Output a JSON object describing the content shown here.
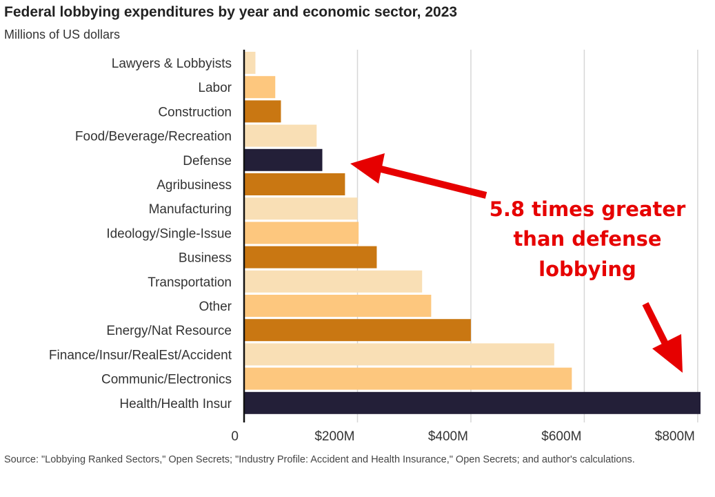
{
  "chart_data": {
    "type": "bar",
    "orientation": "horizontal",
    "title": "Federal lobbying expenditures by year and economic sector, 2023",
    "subtitle": "Millions of US dollars",
    "categories": [
      "Lawyers & Lobbyists",
      "Labor",
      "Construction",
      "Food/Beverage/Recreation",
      "Defense",
      "Agribusiness",
      "Manufacturing",
      "Ideology/Single-Issue",
      "Business",
      "Transportation",
      "Other",
      "Energy/Nat Resource",
      "Finance/Insur/RealEst/Accident",
      "Communic/Electronics",
      "Health/Health Insur"
    ],
    "values": [
      20,
      55,
      65,
      128,
      138,
      178,
      200,
      202,
      234,
      314,
      330,
      400,
      547,
      578,
      805
    ],
    "bar_colors": [
      "#f9dfb5",
      "#fdc77e",
      "#c97712",
      "#f9dfb5",
      "#231f38",
      "#c97712",
      "#f9dfb5",
      "#fdc77e",
      "#c97712",
      "#f9dfb5",
      "#fdc77e",
      "#c97712",
      "#f9dfb5",
      "#fdc77e",
      "#231f38"
    ],
    "xlim": [
      0,
      805
    ],
    "xticks": [
      0,
      200,
      400,
      600,
      800
    ],
    "xtick_labels": [
      "0",
      "$200M",
      "$400M",
      "$600M",
      "$800M"
    ],
    "grid": true,
    "xlabel": "",
    "ylabel": "",
    "annotation": {
      "lines": [
        "5.8 times greater",
        "than defense",
        "lobbying"
      ],
      "color": "#e60000"
    }
  },
  "source_text": "Source: \"Lobbying Ranked Sectors,\" Open Secrets; \"Industry Profile: Accident and Health Insurance,\" Open Secrets; and author's calculations."
}
